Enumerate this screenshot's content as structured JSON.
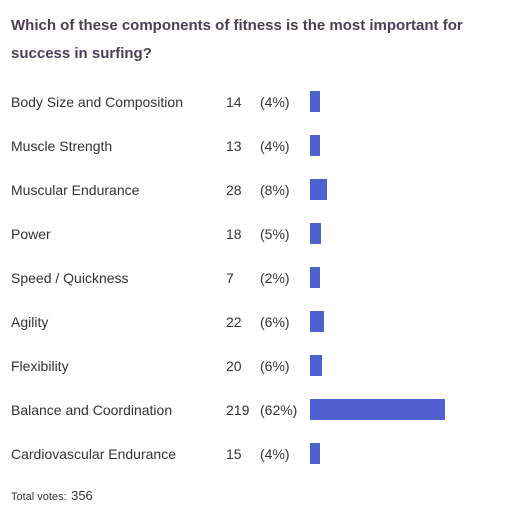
{
  "question": "Which of these components of fitness is the most important for success in surfing?",
  "colors": {
    "bar": "#4f60cf",
    "question_text": "#4a3f57",
    "body_text": "#333333"
  },
  "chart_data": {
    "type": "bar",
    "orientation": "horizontal",
    "title": "Which of these components of fitness is the most important for success in surfing?",
    "categories": [
      "Body Size and Composition",
      "Muscle Strength",
      "Muscular Endurance",
      "Power",
      "Speed / Quickness",
      "Agility",
      "Flexibility",
      "Balance and Coordination",
      "Cardiovascular Endurance"
    ],
    "values": [
      14,
      13,
      28,
      18,
      7,
      22,
      20,
      219,
      15
    ],
    "percent_labels": [
      "(4%)",
      "(4%)",
      "(8%)",
      "(5%)",
      "(2%)",
      "(6%)",
      "(6%)",
      "(62%)",
      "(4%)"
    ],
    "total_label": "Total votes:",
    "total_value": 356
  }
}
